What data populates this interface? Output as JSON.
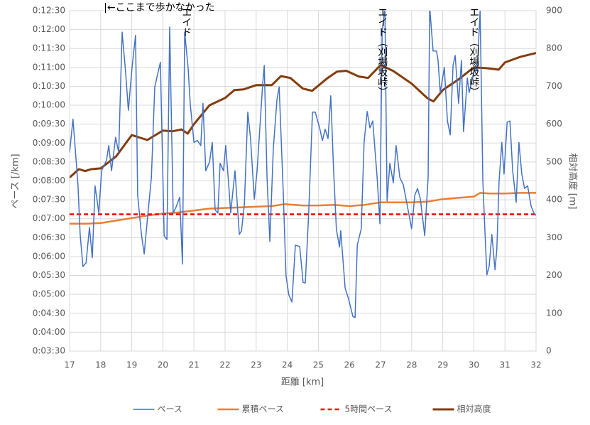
{
  "chart_data": {
    "type": "line",
    "xlabel": "距離 [km]",
    "ylabel": "ペース [/km]",
    "y2label": "相対高度 [m]",
    "xlim": [
      17,
      32
    ],
    "xticks": [
      17,
      18,
      19,
      20,
      21,
      22,
      23,
      24,
      25,
      26,
      27,
      28,
      29,
      30,
      31,
      32
    ],
    "ylim": [
      210,
      750
    ],
    "yticks": [
      {
        "value": 210,
        "label": "0:03:30"
      },
      {
        "value": 240,
        "label": "0:04:00"
      },
      {
        "value": 270,
        "label": "0:04:30"
      },
      {
        "value": 300,
        "label": "0:05:00"
      },
      {
        "value": 330,
        "label": "0:05:30"
      },
      {
        "value": 360,
        "label": "0:06:00"
      },
      {
        "value": 390,
        "label": "0:06:30"
      },
      {
        "value": 420,
        "label": "0:07:00"
      },
      {
        "value": 450,
        "label": "0:07:30"
      },
      {
        "value": 480,
        "label": "0:08:00"
      },
      {
        "value": 510,
        "label": "0:08:30"
      },
      {
        "value": 540,
        "label": "0:09:00"
      },
      {
        "value": 570,
        "label": "0:09:30"
      },
      {
        "value": 600,
        "label": "0:10:00"
      },
      {
        "value": 630,
        "label": "0:10:30"
      },
      {
        "value": 660,
        "label": "0:11:00"
      },
      {
        "value": 690,
        "label": "0:11:30"
      },
      {
        "value": 720,
        "label": "0:12:00"
      },
      {
        "value": 750,
        "label": "0:12:30"
      }
    ],
    "y2lim": [
      0,
      900
    ],
    "y2ticks": [
      0,
      100,
      200,
      300,
      400,
      500,
      600,
      700,
      800,
      900
    ],
    "grid": true,
    "legend": "bottom",
    "series": [
      {
        "name": "ペース",
        "color": "#4472c4",
        "width": 1.5,
        "x": [
          17.0,
          17.11,
          17.27,
          17.34,
          17.43,
          17.53,
          17.64,
          17.73,
          17.82,
          17.94,
          18.03,
          18.19,
          18.26,
          18.35,
          18.48,
          18.58,
          18.69,
          18.8,
          18.89,
          19.01,
          19.12,
          19.19,
          19.31,
          19.4,
          19.51,
          19.63,
          19.74,
          19.83,
          19.92,
          20.04,
          20.13,
          20.22,
          20.33,
          20.42,
          20.54,
          20.63,
          20.7,
          20.81,
          20.88,
          21.0,
          21.11,
          21.22,
          21.29,
          21.38,
          21.5,
          21.59,
          21.68,
          21.77,
          21.84,
          21.95,
          22.02,
          22.11,
          22.18,
          22.32,
          22.46,
          22.53,
          22.62,
          22.73,
          22.82,
          22.94,
          23.03,
          23.21,
          23.26,
          23.35,
          23.44,
          23.55,
          23.67,
          23.74,
          23.87,
          23.96,
          24.05,
          24.15,
          24.26,
          24.4,
          24.51,
          24.58,
          24.69,
          24.81,
          24.9,
          25.04,
          25.13,
          25.22,
          25.31,
          25.4,
          25.49,
          25.58,
          25.68,
          25.72,
          25.86,
          25.97,
          26.11,
          26.18,
          26.25,
          26.38,
          26.47,
          26.57,
          26.66,
          26.75,
          26.89,
          26.98,
          27.05,
          27.14,
          27.21,
          27.3,
          27.41,
          27.5,
          27.62,
          27.73,
          27.82,
          28.0,
          28.1,
          28.19,
          28.28,
          28.42,
          28.53,
          28.58,
          28.69,
          28.8,
          28.85,
          28.92,
          29.05,
          29.15,
          29.24,
          29.33,
          29.4,
          29.51,
          29.6,
          29.67,
          29.79,
          29.85,
          30.04,
          30.11,
          30.2,
          30.29,
          30.36,
          30.42,
          30.49,
          30.58,
          30.68,
          30.74,
          30.81,
          30.9,
          30.97,
          31.07,
          31.16,
          31.25,
          31.36,
          31.45,
          31.54,
          31.63,
          31.73,
          31.84,
          31.93,
          32.0
        ],
        "values": [
          525,
          578,
          474,
          395,
          344,
          350,
          406,
          358,
          472,
          429,
          496,
          513,
          536,
          496,
          549,
          525,
          716,
          654,
          592,
          660,
          711,
          457,
          395,
          364,
          423,
          485,
          629,
          649,
          668,
          393,
          387,
          724,
          429,
          438,
          454,
          348,
          716,
          660,
          603,
          541,
          544,
          536,
          603,
          496,
          510,
          541,
          434,
          429,
          508,
          496,
          536,
          479,
          429,
          496,
          395,
          401,
          443,
          589,
          547,
          451,
          496,
          634,
          663,
          485,
          384,
          530,
          609,
          629,
          463,
          330,
          299,
          288,
          378,
          376,
          319,
          318,
          429,
          589,
          589,
          564,
          544,
          562,
          547,
          615,
          496,
          403,
          375,
          401,
          310,
          293,
          265,
          263,
          378,
          404,
          541,
          590,
          564,
          575,
          485,
          412,
          716,
          756,
          448,
          508,
          477,
          536,
          485,
          474,
          451,
          404,
          457,
          468,
          451,
          393,
          485,
          756,
          686,
          686,
          671,
          620,
          660,
          575,
          553,
          663,
          679,
          603,
          671,
          558,
          643,
          620,
          660,
          654,
          750,
          479,
          395,
          331,
          344,
          395,
          339,
          372,
          479,
          541,
          491,
          573,
          575,
          496,
          446,
          541,
          491,
          468,
          472,
          440,
          429,
          425
        ]
      },
      {
        "name": "累積ペース",
        "color": "#ed7d31",
        "width": 2.5,
        "x": [
          17,
          17.5,
          18,
          18.5,
          19,
          19.5,
          20,
          20.5,
          21,
          21.5,
          22,
          22.5,
          23,
          23.5,
          23.9,
          24.5,
          25,
          25.5,
          26,
          26.5,
          27,
          27.5,
          28,
          28.5,
          29,
          29.5,
          30,
          30.2,
          30.5,
          31,
          31.5,
          32
        ],
        "values": [
          412,
          412,
          413,
          417,
          421,
          425,
          428,
          430,
          433,
          436,
          437,
          438,
          439,
          440,
          443,
          441,
          441,
          442,
          440,
          442,
          446,
          446,
          446,
          447,
          451,
          453,
          455,
          461,
          460,
          460,
          461,
          461
        ]
      },
      {
        "name": "5時間ペース",
        "color": "#ff0000",
        "width": 2.5,
        "dashed": true,
        "x": [
          17,
          32
        ],
        "values": [
          427,
          427
        ]
      },
      {
        "name": "相対高度",
        "color": "#843c0c",
        "width": 3,
        "axis": "y2",
        "x": [
          17,
          17.3,
          17.5,
          17.7,
          18,
          18.5,
          19,
          19.5,
          20,
          20.3,
          20.6,
          20.8,
          21,
          21.5,
          22,
          22.3,
          22.6,
          23,
          23.5,
          23.8,
          24.1,
          24.5,
          24.8,
          25.3,
          25.6,
          25.9,
          26.3,
          26.6,
          27,
          27.4,
          28,
          28.5,
          28.7,
          29,
          29.5,
          30,
          30.4,
          30.8,
          31,
          31.5,
          32
        ],
        "values": [
          459,
          481,
          476,
          481,
          483,
          515,
          571,
          558,
          583,
          581,
          586,
          575,
          600,
          650,
          669,
          690,
          692,
          703,
          703,
          727,
          722,
          694,
          688,
          722,
          739,
          741,
          726,
          722,
          756,
          741,
          707,
          669,
          660,
          690,
          718,
          750,
          748,
          744,
          763,
          778,
          788
        ]
      }
    ],
    "annotations": [
      {
        "text": "|←ここまで歩かなかった",
        "x": 18.1,
        "vertical": false
      },
      {
        "text": "エイド",
        "x": 20.75,
        "vertical": true
      },
      {
        "text": "エイド（刈場坂峠）",
        "x": 27.05,
        "vertical": true
      },
      {
        "text": "エイド（刈場坂峠）",
        "x": 30.0,
        "vertical": true
      }
    ]
  }
}
